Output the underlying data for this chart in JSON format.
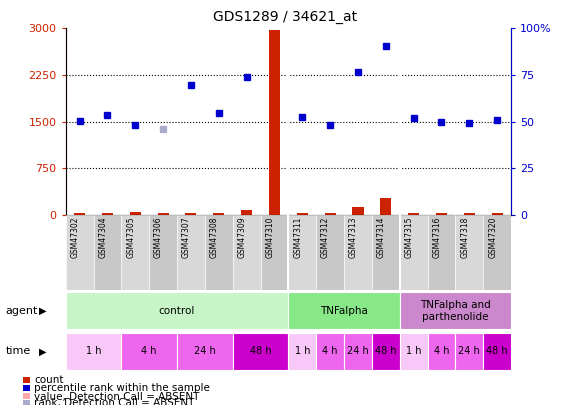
{
  "title": "GDS1289 / 34621_at",
  "samples": [
    "GSM47302",
    "GSM47304",
    "GSM47305",
    "GSM47306",
    "GSM47307",
    "GSM47308",
    "GSM47309",
    "GSM47310",
    "GSM47311",
    "GSM47312",
    "GSM47313",
    "GSM47314",
    "GSM47315",
    "GSM47316",
    "GSM47318",
    "GSM47320"
  ],
  "count_values": [
    30,
    20,
    35,
    20,
    25,
    20,
    80,
    2980,
    25,
    20,
    130,
    270,
    25,
    20,
    20,
    20
  ],
  "rank_values": [
    1510,
    1610,
    1440,
    null,
    2080,
    1640,
    2210,
    null,
    1570,
    1440,
    2290,
    2720,
    1560,
    1490,
    1470,
    1530
  ],
  "rank_absent": [
    null,
    null,
    null,
    1380,
    null,
    null,
    null,
    null,
    null,
    null,
    null,
    null,
    null,
    null,
    null,
    null
  ],
  "ylim_left": [
    0,
    3000
  ],
  "yticks_left": [
    0,
    750,
    1500,
    2250,
    3000
  ],
  "ytick_labels_left": [
    "0",
    "750",
    "1500",
    "2250",
    "3000"
  ],
  "ytick_labels_right": [
    "0",
    "25",
    "50",
    "75",
    "100%"
  ],
  "agent_groups": [
    {
      "label": "control",
      "start": 0,
      "end": 8,
      "color": "#c8f5c8"
    },
    {
      "label": "TNFalpha",
      "start": 8,
      "end": 12,
      "color": "#88e888"
    },
    {
      "label": "TNFalpha and\nparthenolide",
      "start": 12,
      "end": 16,
      "color": "#cc88cc"
    }
  ],
  "time_groups": [
    {
      "label": "1 h",
      "start": 0,
      "end": 2,
      "color": "#f8c8f8"
    },
    {
      "label": "4 h",
      "start": 2,
      "end": 4,
      "color": "#ee66ee"
    },
    {
      "label": "24 h",
      "start": 4,
      "end": 6,
      "color": "#ee66ee"
    },
    {
      "label": "48 h",
      "start": 6,
      "end": 8,
      "color": "#cc00cc"
    },
    {
      "label": "1 h",
      "start": 8,
      "end": 9,
      "color": "#f8c8f8"
    },
    {
      "label": "4 h",
      "start": 9,
      "end": 10,
      "color": "#ee66ee"
    },
    {
      "label": "24 h",
      "start": 10,
      "end": 11,
      "color": "#ee66ee"
    },
    {
      "label": "48 h",
      "start": 11,
      "end": 12,
      "color": "#cc00cc"
    },
    {
      "label": "1 h",
      "start": 12,
      "end": 13,
      "color": "#f8c8f8"
    },
    {
      "label": "4 h",
      "start": 13,
      "end": 14,
      "color": "#ee66ee"
    },
    {
      "label": "24 h",
      "start": 14,
      "end": 15,
      "color": "#ee66ee"
    },
    {
      "label": "48 h",
      "start": 15,
      "end": 16,
      "color": "#cc00cc"
    }
  ],
  "group_dividers": [
    7.5,
    11.5
  ],
  "count_color": "#cc2200",
  "rank_color": "#0000cc",
  "rank_absent_color": "#aaaacc",
  "count_absent_color": "#ffaaaa",
  "bar_width": 0.4,
  "marker_size": 5,
  "axis_color_left": "#cc2200",
  "axis_color_right": "#0000cc"
}
